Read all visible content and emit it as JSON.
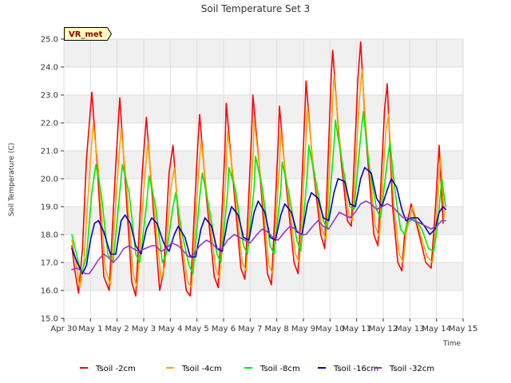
{
  "chart_data": {
    "type": "line",
    "title": "Soil Temperature Set 3",
    "xlabel": "Time",
    "ylabel": "Soil Temperature (C)",
    "badge": "VR_met",
    "ylim": [
      15.0,
      25.0
    ],
    "yticks": [
      "15.0",
      "16.0",
      "17.0",
      "18.0",
      "19.0",
      "20.0",
      "21.0",
      "22.0",
      "23.0",
      "24.0",
      "25.0"
    ],
    "xlim": [
      0,
      15
    ],
    "xtick_labels": [
      "Apr 30",
      "May 1",
      "May 2",
      "May 3",
      "May 4",
      "May 5",
      "May 6",
      "May 7",
      "May 8",
      "May 9",
      "May 10",
      "May 11",
      "May 12",
      "May 13",
      "May 14",
      "May 15"
    ],
    "grid": true,
    "legend_position": "bottom",
    "series": [
      {
        "name": "Tsoil -2cm",
        "color": "#ff0000",
        "x": [
          0.3,
          0.4,
          0.55,
          0.7,
          0.85,
          1.05,
          1.25,
          1.5,
          1.7,
          1.95,
          2.1,
          2.3,
          2.55,
          2.7,
          2.95,
          3.1,
          3.35,
          3.6,
          3.75,
          3.95,
          4.1,
          4.35,
          4.6,
          4.75,
          5.0,
          5.1,
          5.35,
          5.65,
          5.8,
          6.05,
          6.1,
          6.35,
          6.65,
          6.8,
          7.05,
          7.1,
          7.35,
          7.65,
          7.8,
          8.05,
          8.1,
          8.35,
          8.65,
          8.8,
          9.05,
          9.1,
          9.35,
          9.65,
          9.8,
          10.05,
          10.1,
          10.35,
          10.65,
          10.8,
          11.05,
          11.15,
          11.35,
          11.65,
          11.8,
          12.05,
          12.15,
          12.35,
          12.55,
          12.7,
          12.8,
          13.05,
          13.35,
          13.6,
          13.8,
          13.95,
          14.1,
          14.25
        ],
        "values": [
          17.6,
          16.8,
          15.9,
          17.5,
          20.7,
          23.1,
          20.5,
          16.5,
          16.0,
          20.5,
          22.9,
          20.0,
          16.3,
          15.8,
          20.3,
          22.2,
          19.0,
          16.0,
          16.7,
          20.2,
          21.2,
          18.0,
          16.0,
          15.8,
          20.7,
          22.3,
          19.4,
          16.5,
          16.1,
          21.0,
          22.7,
          20.0,
          16.8,
          16.4,
          21.5,
          23.0,
          20.4,
          16.6,
          16.2,
          21.2,
          22.6,
          19.8,
          17.0,
          16.6,
          22.3,
          23.5,
          20.5,
          18.0,
          17.5,
          23.8,
          24.6,
          21.3,
          18.5,
          18.3,
          23.6,
          24.9,
          21.5,
          18.0,
          17.6,
          22.5,
          23.4,
          19.0,
          17.0,
          16.7,
          18.0,
          19.1,
          18.0,
          17.0,
          16.8,
          18.8,
          21.2,
          18.4
        ]
      },
      {
        "name": "Tsoil -4cm",
        "color": "#ffa500",
        "x": [
          0.3,
          0.45,
          0.6,
          0.75,
          0.95,
          1.1,
          1.3,
          1.55,
          1.75,
          2.0,
          2.15,
          2.35,
          2.6,
          2.75,
          3.0,
          3.15,
          3.4,
          3.65,
          3.8,
          4.0,
          4.15,
          4.4,
          4.65,
          4.8,
          5.05,
          5.15,
          5.4,
          5.7,
          5.85,
          6.1,
          6.15,
          6.4,
          6.7,
          6.85,
          7.1,
          7.15,
          7.4,
          7.7,
          7.85,
          8.1,
          8.15,
          8.4,
          8.7,
          8.85,
          9.1,
          9.15,
          9.4,
          9.7,
          9.85,
          10.1,
          10.15,
          10.4,
          10.7,
          10.85,
          11.1,
          11.2,
          11.4,
          11.7,
          11.85,
          12.1,
          12.2,
          12.4,
          12.6,
          12.75,
          12.85,
          13.1,
          13.4,
          13.65,
          13.85,
          14.0,
          14.15,
          14.3
        ],
        "values": [
          17.8,
          17.0,
          16.1,
          17.0,
          20.0,
          22.0,
          20.3,
          16.8,
          16.2,
          19.9,
          21.8,
          19.8,
          16.6,
          16.1,
          19.6,
          21.3,
          18.9,
          16.4,
          16.9,
          19.5,
          20.4,
          17.9,
          16.3,
          16.1,
          20.0,
          21.4,
          19.2,
          16.8,
          16.4,
          20.3,
          21.7,
          19.8,
          17.0,
          16.7,
          20.7,
          22.1,
          20.0,
          16.9,
          16.6,
          20.5,
          21.7,
          19.6,
          17.3,
          17.0,
          21.5,
          22.6,
          20.2,
          18.2,
          17.8,
          22.8,
          23.7,
          21.0,
          18.7,
          18.5,
          22.8,
          23.9,
          21.2,
          18.3,
          17.9,
          21.7,
          22.3,
          19.0,
          17.3,
          17.0,
          18.0,
          19.0,
          18.0,
          17.2,
          17.0,
          18.6,
          20.8,
          18.6
        ]
      },
      {
        "name": "Tsoil -8cm",
        "color": "#00ee00",
        "x": [
          0.3,
          0.5,
          0.65,
          0.85,
          1.05,
          1.2,
          1.4,
          1.65,
          1.85,
          2.1,
          2.2,
          2.45,
          2.7,
          2.85,
          3.1,
          3.2,
          3.45,
          3.7,
          3.85,
          4.1,
          4.2,
          4.45,
          4.7,
          4.85,
          5.1,
          5.2,
          5.45,
          5.75,
          5.9,
          6.15,
          6.2,
          6.45,
          6.75,
          6.9,
          7.15,
          7.2,
          7.45,
          7.75,
          7.9,
          8.15,
          8.2,
          8.45,
          8.75,
          8.9,
          9.15,
          9.2,
          9.45,
          9.75,
          9.9,
          10.15,
          10.2,
          10.45,
          10.75,
          10.9,
          11.15,
          11.25,
          11.45,
          11.75,
          11.9,
          12.15,
          12.25,
          12.45,
          12.65,
          12.8,
          12.9,
          13.15,
          13.45,
          13.7,
          13.9,
          14.05,
          14.2,
          14.35
        ],
        "values": [
          18.0,
          17.2,
          16.6,
          17.2,
          19.5,
          20.5,
          19.5,
          17.3,
          17.0,
          19.5,
          20.5,
          19.5,
          17.3,
          17.0,
          19.0,
          20.1,
          19.0,
          17.0,
          17.3,
          19.0,
          19.5,
          18.0,
          16.9,
          16.6,
          19.3,
          20.2,
          19.0,
          17.3,
          17.0,
          19.5,
          20.4,
          19.6,
          17.6,
          17.3,
          19.7,
          20.8,
          19.7,
          17.6,
          17.3,
          19.6,
          20.6,
          19.5,
          17.8,
          17.4,
          20.2,
          21.2,
          20.0,
          18.5,
          18.2,
          21.2,
          22.1,
          20.6,
          19.0,
          18.9,
          21.5,
          22.4,
          20.6,
          18.9,
          18.6,
          20.6,
          21.3,
          19.5,
          18.2,
          18.0,
          18.4,
          18.6,
          18.2,
          17.5,
          17.4,
          18.4,
          20.0,
          19.0
        ]
      },
      {
        "name": "Tsoil -16cm",
        "color": "#0000cc",
        "x": [
          0.3,
          0.5,
          0.7,
          0.85,
          1.0,
          1.15,
          1.3,
          1.5,
          1.75,
          1.95,
          2.15,
          2.3,
          2.5,
          2.7,
          2.9,
          3.1,
          3.3,
          3.5,
          3.75,
          3.95,
          4.15,
          4.3,
          4.55,
          4.75,
          4.95,
          5.15,
          5.3,
          5.55,
          5.75,
          5.95,
          6.15,
          6.3,
          6.55,
          6.75,
          6.95,
          7.15,
          7.3,
          7.55,
          7.75,
          7.95,
          8.15,
          8.3,
          8.55,
          8.75,
          8.95,
          9.15,
          9.3,
          9.55,
          9.75,
          9.95,
          10.15,
          10.3,
          10.55,
          10.75,
          10.95,
          11.15,
          11.3,
          11.55,
          11.75,
          11.95,
          12.15,
          12.3,
          12.5,
          12.7,
          12.85,
          13.05,
          13.3,
          13.55,
          13.75,
          13.95,
          14.1,
          14.25,
          14.35
        ],
        "values": [
          17.5,
          17.0,
          16.6,
          16.9,
          17.8,
          18.4,
          18.5,
          18.1,
          17.3,
          17.3,
          18.5,
          18.7,
          18.4,
          17.6,
          17.3,
          18.2,
          18.6,
          18.4,
          17.7,
          17.4,
          18.0,
          18.3,
          17.9,
          17.2,
          17.2,
          18.2,
          18.6,
          18.3,
          17.5,
          17.4,
          18.5,
          19.0,
          18.7,
          17.9,
          17.8,
          18.8,
          19.2,
          18.8,
          17.9,
          17.8,
          18.7,
          19.1,
          18.8,
          18.1,
          18.0,
          19.1,
          19.5,
          19.3,
          18.6,
          18.5,
          19.5,
          20.0,
          19.9,
          19.1,
          19.0,
          20.0,
          20.4,
          20.2,
          19.3,
          19.0,
          19.6,
          20.0,
          19.7,
          18.9,
          18.5,
          18.6,
          18.6,
          18.3,
          18.0,
          18.2,
          18.8,
          19.0,
          18.9
        ]
      },
      {
        "name": "Tsoil -32cm",
        "color": "#9932cc",
        "x": [
          0.3,
          0.5,
          0.65,
          0.8,
          0.95,
          1.1,
          1.3,
          1.5,
          1.65,
          1.85,
          2.05,
          2.25,
          2.45,
          2.6,
          2.8,
          3.05,
          3.3,
          3.45,
          3.65,
          3.85,
          4.05,
          4.3,
          4.5,
          4.7,
          4.9,
          5.1,
          5.35,
          5.55,
          5.75,
          5.95,
          6.15,
          6.4,
          6.6,
          6.8,
          7.0,
          7.25,
          7.45,
          7.65,
          7.85,
          8.05,
          8.3,
          8.5,
          8.7,
          8.9,
          9.1,
          9.35,
          9.55,
          9.75,
          9.95,
          10.15,
          10.35,
          10.55,
          10.75,
          10.95,
          11.15,
          11.35,
          11.55,
          11.75,
          11.95,
          12.15,
          12.35,
          12.55,
          12.75,
          12.95,
          13.15,
          13.4,
          13.6,
          13.8,
          14.0,
          14.2,
          14.35
        ],
        "values": [
          16.75,
          16.8,
          16.7,
          16.6,
          16.6,
          16.8,
          17.1,
          17.3,
          17.2,
          17.0,
          17.2,
          17.5,
          17.6,
          17.5,
          17.4,
          17.5,
          17.6,
          17.6,
          17.4,
          17.5,
          17.7,
          17.6,
          17.4,
          17.2,
          17.3,
          17.6,
          17.8,
          17.7,
          17.5,
          17.5,
          17.8,
          18.0,
          17.9,
          17.8,
          17.7,
          18.0,
          18.2,
          18.1,
          17.9,
          17.8,
          18.1,
          18.3,
          18.2,
          18.0,
          18.0,
          18.3,
          18.5,
          18.3,
          18.2,
          18.5,
          18.8,
          18.7,
          18.6,
          18.8,
          19.1,
          19.2,
          19.1,
          18.9,
          19.0,
          19.1,
          19.0,
          18.8,
          18.6,
          18.6,
          18.5,
          18.4,
          18.3,
          18.2,
          18.3,
          18.5,
          18.5
        ]
      }
    ]
  }
}
